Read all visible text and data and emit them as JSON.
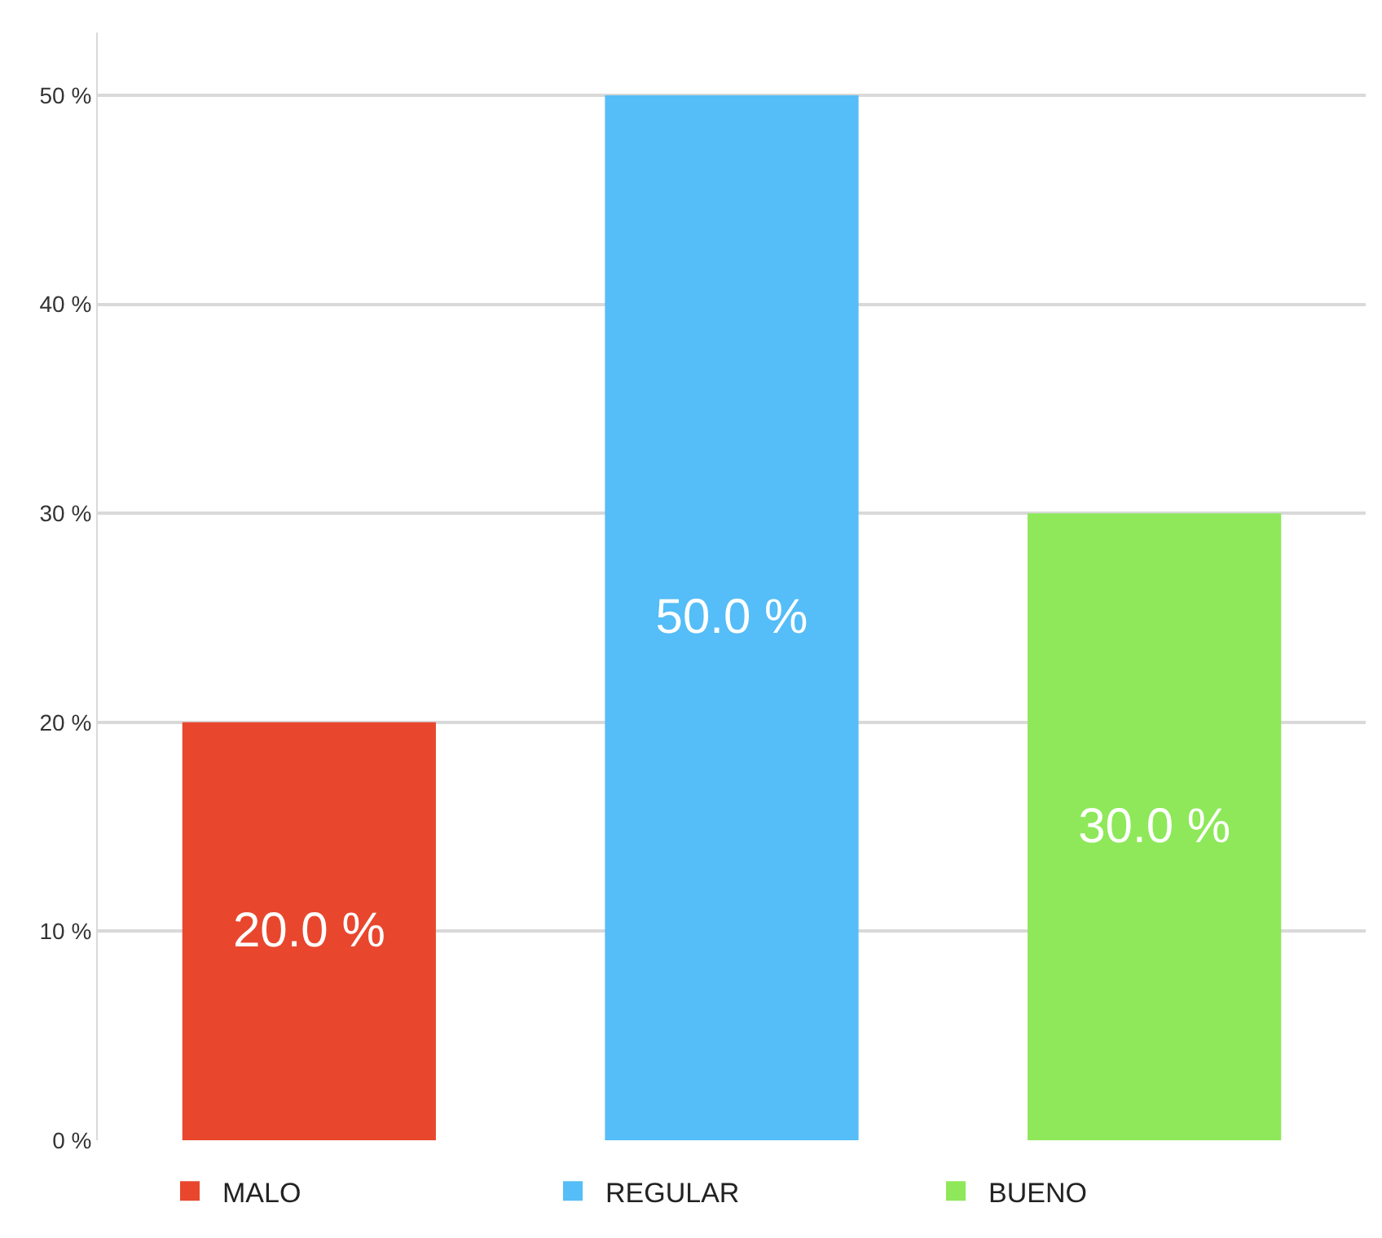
{
  "chart_data": {
    "type": "bar",
    "categories": [
      null,
      null,
      null
    ],
    "series": [
      {
        "name": "MALO",
        "color": "#e8472e",
        "values": [
          20,
          null,
          null
        ],
        "value_labels": [
          "20.0 %",
          null,
          null
        ]
      },
      {
        "name": "REGULAR",
        "color": "#55bdf7",
        "values": [
          null,
          50,
          null
        ],
        "value_labels": [
          null,
          "50.0 %",
          null
        ]
      },
      {
        "name": "BUENO",
        "color": "#8ee85a",
        "values": [
          null,
          null,
          30
        ],
        "value_labels": [
          null,
          null,
          "30.0 %"
        ]
      }
    ],
    "ylim": [
      0,
      53
    ],
    "yticks": [
      {
        "value": 0,
        "label": "0 %"
      },
      {
        "value": 10,
        "label": "10 %"
      },
      {
        "value": 20,
        "label": "20 %"
      },
      {
        "value": 30,
        "label": "30 %"
      },
      {
        "value": 40,
        "label": "40 %"
      },
      {
        "value": 50,
        "label": "50 %"
      }
    ],
    "grid": "y",
    "legend": "bottom",
    "tick_labels": "y"
  }
}
